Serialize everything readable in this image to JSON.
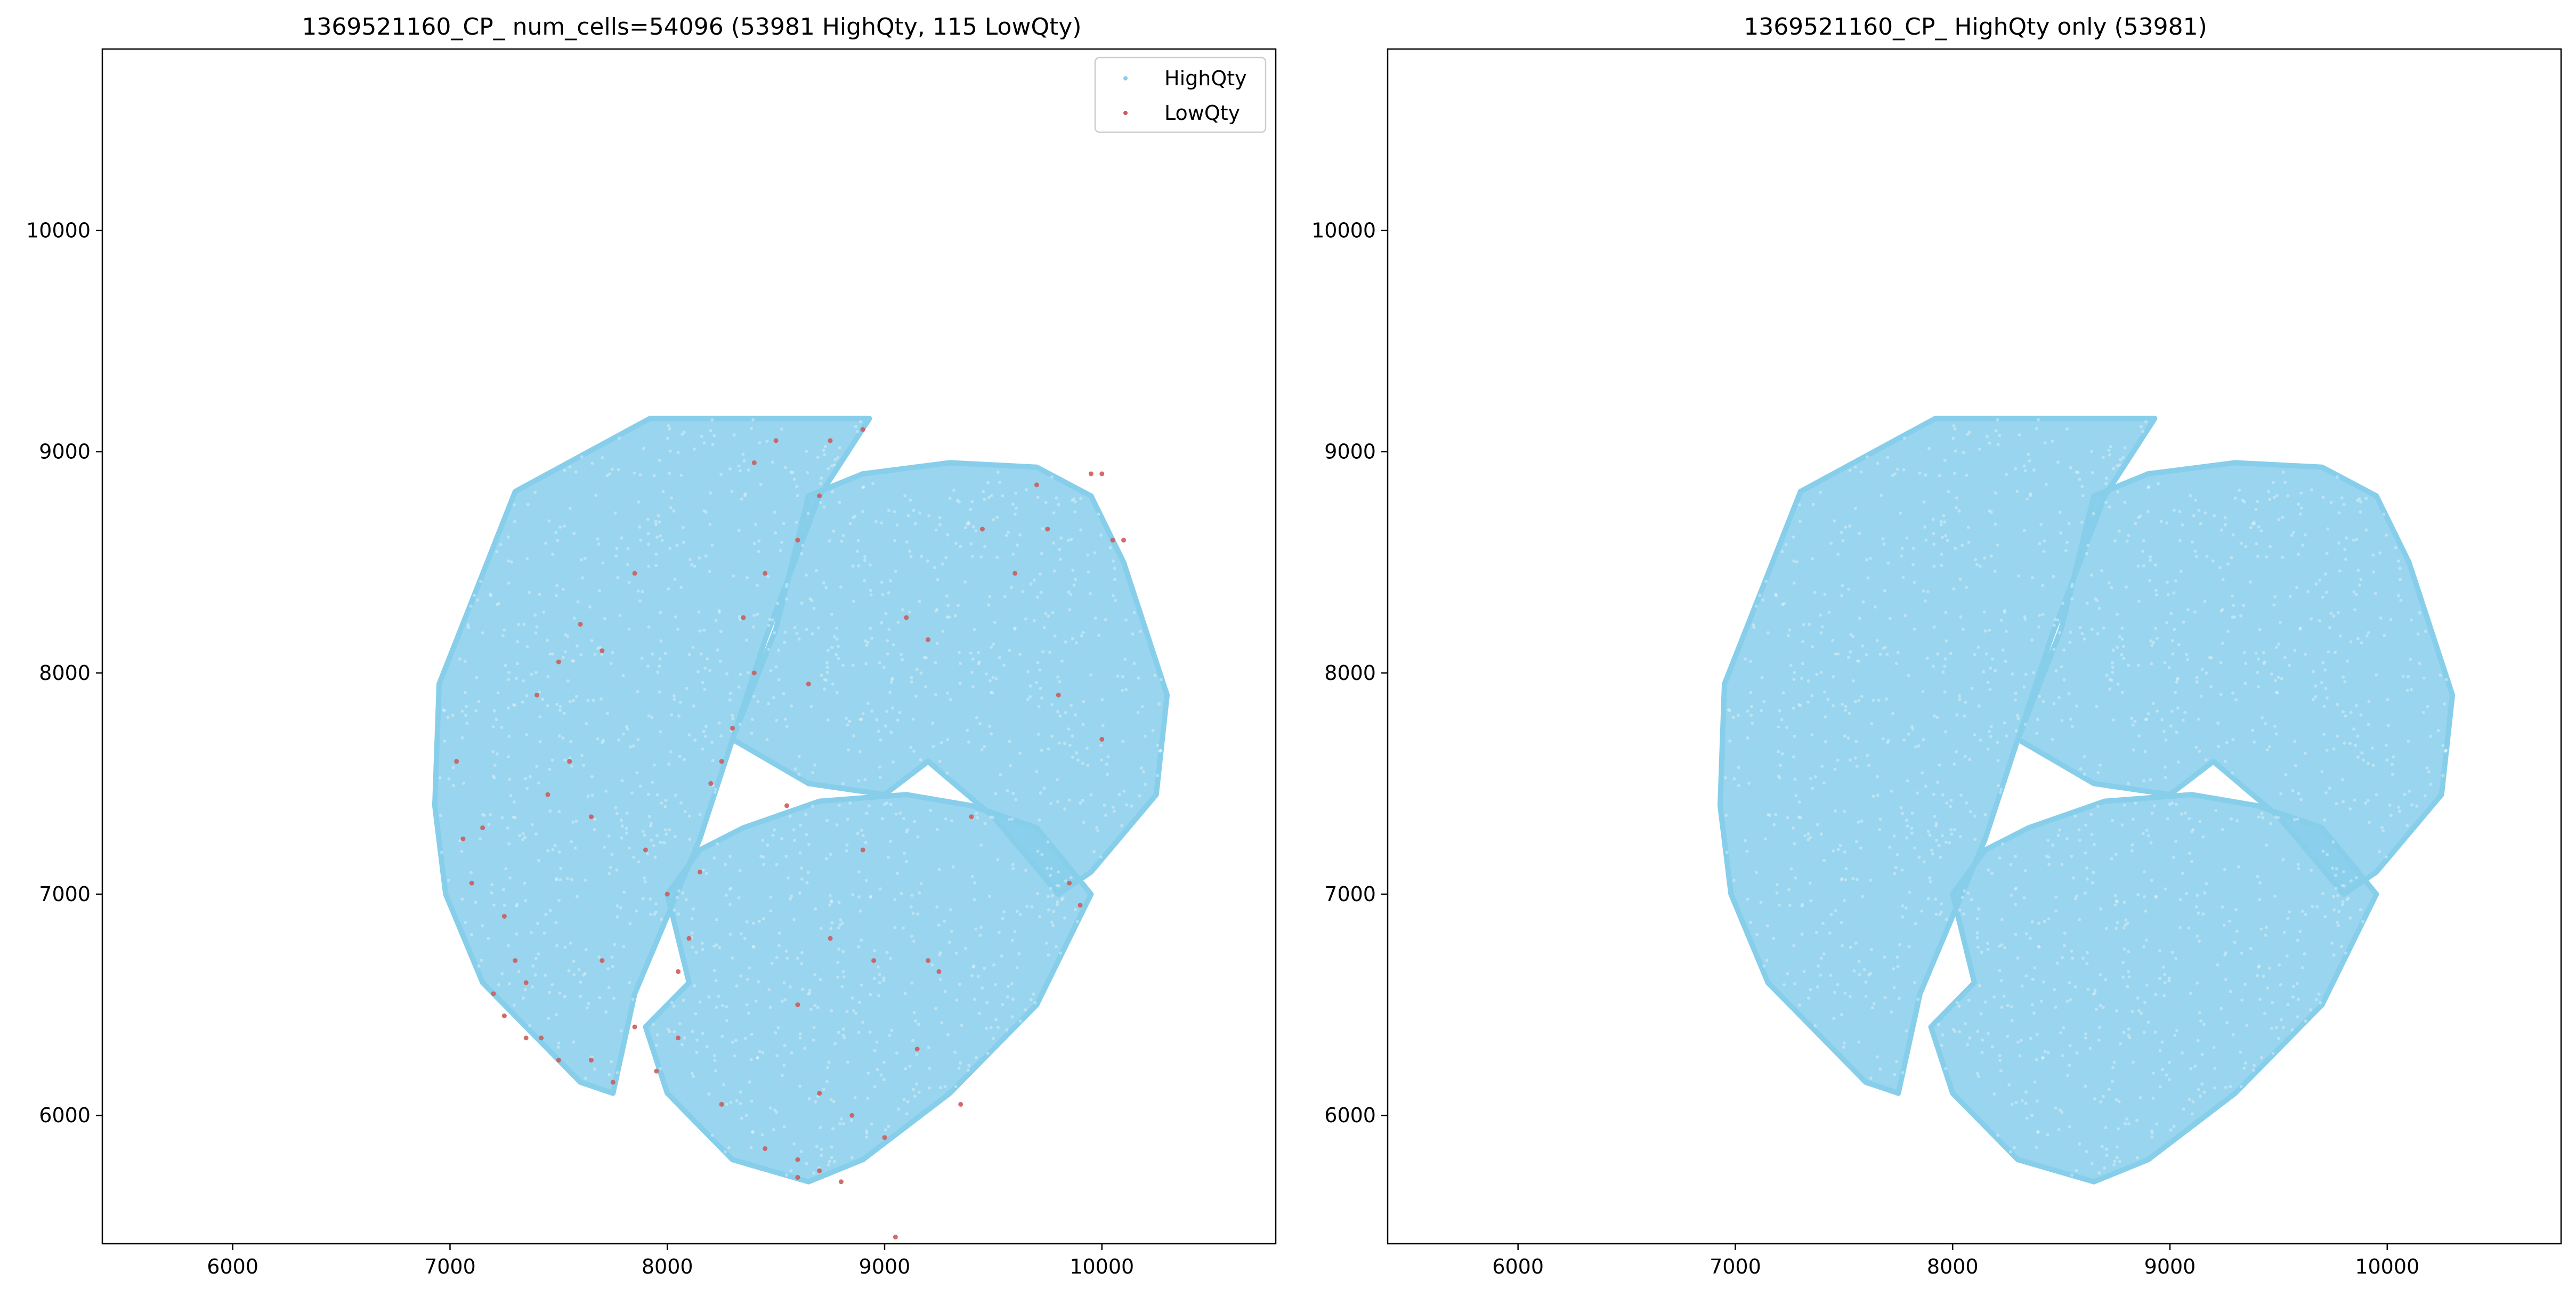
{
  "chart_data": [
    {
      "type": "scatter",
      "title": "1369521160_CP_ num_cells=54096 (53981 HighQty, 115 LowQty)",
      "xlim": [
        5400,
        10800
      ],
      "ylim": [
        5420,
        10820
      ],
      "x_ticks": [
        6000,
        7000,
        8000,
        9000,
        10000
      ],
      "y_ticks": [
        6000,
        7000,
        8000,
        9000,
        10000
      ],
      "grid": false,
      "legend": {
        "placement": "top-right",
        "entries": [
          {
            "label": "HighQty",
            "color": "#87CEEB"
          },
          {
            "label": "LowQty",
            "color": "#CD5C5C"
          }
        ]
      },
      "series": [
        {
          "name": "HighQty",
          "color": "#87CEEB",
          "count": 53981,
          "regions": [
            {
              "polygon": [
                [
                  7920,
                  9150
                ],
                [
                  7300,
                  8820
                ],
                [
                  6950,
                  7950
                ],
                [
                  6930,
                  7400
                ],
                [
                  6980,
                  7000
                ],
                [
                  7150,
                  6600
                ],
                [
                  7350,
                  6400
                ],
                [
                  7600,
                  6150
                ],
                [
                  7750,
                  6100
                ],
                [
                  7850,
                  6550
                ],
                [
                  8000,
                  6900
                ],
                [
                  8150,
                  7250
                ],
                [
                  8300,
                  7700
                ],
                [
                  8450,
                  8150
                ],
                [
                  8700,
                  8800
                ],
                [
                  8930,
                  9150
                ]
              ]
            },
            {
              "polygon": [
                [
                  8650,
                  8800
                ],
                [
                  8500,
                  8200
                ],
                [
                  8300,
                  7700
                ],
                [
                  8650,
                  7500
                ],
                [
                  9000,
                  7450
                ],
                [
                  9200,
                  7600
                ],
                [
                  9500,
                  7350
                ],
                [
                  9800,
                  7000
                ],
                [
                  9950,
                  7100
                ],
                [
                  10250,
                  7450
                ],
                [
                  10300,
                  7900
                ],
                [
                  10100,
                  8500
                ],
                [
                  9950,
                  8800
                ],
                [
                  9700,
                  8930
                ],
                [
                  9300,
                  8950
                ],
                [
                  8900,
                  8900
                ]
              ]
            },
            {
              "polygon": [
                [
                  8000,
                  7000
                ],
                [
                  8100,
                  6600
                ],
                [
                  7900,
                  6400
                ],
                [
                  8000,
                  6100
                ],
                [
                  8300,
                  5800
                ],
                [
                  8650,
                  5700
                ],
                [
                  8900,
                  5800
                ],
                [
                  9300,
                  6100
                ],
                [
                  9700,
                  6500
                ],
                [
                  9950,
                  7000
                ],
                [
                  9700,
                  7300
                ],
                [
                  9400,
                  7400
                ],
                [
                  9100,
                  7450
                ],
                [
                  8700,
                  7420
                ],
                [
                  8350,
                  7300
                ],
                [
                  8150,
                  7200
                ]
              ]
            }
          ]
        },
        {
          "name": "LowQty",
          "color": "#CD5C5C",
          "count": 115,
          "points": [
            [
              7030,
              7600
            ],
            [
              7060,
              7250
            ],
            [
              7150,
              7300
            ],
            [
              7200,
              6550
            ],
            [
              7250,
              6450
            ],
            [
              7350,
              6350
            ],
            [
              7420,
              6350
            ],
            [
              7300,
              6700
            ],
            [
              7450,
              7450
            ],
            [
              7550,
              7600
            ],
            [
              7600,
              8220
            ],
            [
              7700,
              8100
            ],
            [
              7700,
              6700
            ],
            [
              7750,
              6150
            ],
            [
              7850,
              8450
            ],
            [
              7900,
              7200
            ],
            [
              8000,
              7000
            ],
            [
              8050,
              6650
            ],
            [
              8100,
              6800
            ],
            [
              8200,
              7500
            ],
            [
              8300,
              7750
            ],
            [
              8350,
              8250
            ],
            [
              8400,
              8000
            ],
            [
              8450,
              8450
            ],
            [
              8600,
              8600
            ],
            [
              8650,
              7950
            ],
            [
              8700,
              8800
            ],
            [
              8750,
              9050
            ],
            [
              8900,
              9100
            ],
            [
              8400,
              8950
            ],
            [
              8500,
              9050
            ],
            [
              8600,
              6500
            ],
            [
              8700,
              6100
            ],
            [
              8600,
              5720
            ],
            [
              8700,
              5750
            ],
            [
              8850,
              6000
            ],
            [
              9050,
              5450
            ],
            [
              9250,
              6650
            ],
            [
              9200,
              6700
            ],
            [
              9200,
              8150
            ],
            [
              9700,
              8850
            ],
            [
              9850,
              7050
            ],
            [
              9900,
              6950
            ],
            [
              10000,
              7700
            ],
            [
              10100,
              8600
            ],
            [
              10000,
              8900
            ],
            [
              9450,
              8650
            ],
            [
              9100,
              8250
            ],
            [
              9950,
              8900
            ],
            [
              7400,
              7900
            ],
            [
              7500,
              8050
            ],
            [
              7650,
              7350
            ],
            [
              7850,
              6400
            ],
            [
              8150,
              7100
            ],
            [
              8250,
              7600
            ],
            [
              8550,
              7400
            ],
            [
              8750,
              6800
            ],
            [
              8900,
              7200
            ],
            [
              8950,
              6700
            ],
            [
              9150,
              6300
            ],
            [
              9400,
              7350
            ],
            [
              9600,
              8450
            ],
            [
              9750,
              8650
            ],
            [
              9800,
              7900
            ],
            [
              10050,
              8600
            ],
            [
              7100,
              7050
            ],
            [
              7250,
              6900
            ],
            [
              7350,
              6600
            ],
            [
              7500,
              6250
            ],
            [
              7650,
              6250
            ],
            [
              7950,
              6200
            ],
            [
              8050,
              6350
            ],
            [
              8250,
              6050
            ],
            [
              8450,
              5850
            ],
            [
              8600,
              5800
            ],
            [
              8800,
              5700
            ],
            [
              9000,
              5900
            ],
            [
              9350,
              6050
            ]
          ]
        }
      ]
    },
    {
      "type": "scatter",
      "title": "1369521160_CP_ HighQty only (53981)",
      "xlim": [
        5400,
        10800
      ],
      "ylim": [
        5420,
        10820
      ],
      "x_ticks": [
        6000,
        7000,
        8000,
        9000,
        10000
      ],
      "y_ticks": [
        6000,
        7000,
        8000,
        9000,
        10000
      ],
      "grid": false,
      "series": [
        {
          "name": "HighQty",
          "color": "#87CEEB",
          "count": 53981,
          "regions": [
            {
              "polygon": [
                [
                  7920,
                  9150
                ],
                [
                  7300,
                  8820
                ],
                [
                  6950,
                  7950
                ],
                [
                  6930,
                  7400
                ],
                [
                  6980,
                  7000
                ],
                [
                  7150,
                  6600
                ],
                [
                  7350,
                  6400
                ],
                [
                  7600,
                  6150
                ],
                [
                  7750,
                  6100
                ],
                [
                  7850,
                  6550
                ],
                [
                  8000,
                  6900
                ],
                [
                  8150,
                  7250
                ],
                [
                  8300,
                  7700
                ],
                [
                  8450,
                  8150
                ],
                [
                  8700,
                  8800
                ],
                [
                  8930,
                  9150
                ]
              ]
            },
            {
              "polygon": [
                [
                  8650,
                  8800
                ],
                [
                  8500,
                  8200
                ],
                [
                  8300,
                  7700
                ],
                [
                  8650,
                  7500
                ],
                [
                  9000,
                  7450
                ],
                [
                  9200,
                  7600
                ],
                [
                  9500,
                  7350
                ],
                [
                  9800,
                  7000
                ],
                [
                  9950,
                  7100
                ],
                [
                  10250,
                  7450
                ],
                [
                  10300,
                  7900
                ],
                [
                  10100,
                  8500
                ],
                [
                  9950,
                  8800
                ],
                [
                  9700,
                  8930
                ],
                [
                  9300,
                  8950
                ],
                [
                  8900,
                  8900
                ]
              ]
            },
            {
              "polygon": [
                [
                  8000,
                  7000
                ],
                [
                  8100,
                  6600
                ],
                [
                  7900,
                  6400
                ],
                [
                  8000,
                  6100
                ],
                [
                  8300,
                  5800
                ],
                [
                  8650,
                  5700
                ],
                [
                  8900,
                  5800
                ],
                [
                  9300,
                  6100
                ],
                [
                  9700,
                  6500
                ],
                [
                  9950,
                  7000
                ],
                [
                  9700,
                  7300
                ],
                [
                  9400,
                  7400
                ],
                [
                  9100,
                  7450
                ],
                [
                  8700,
                  7420
                ],
                [
                  8350,
                  7300
                ],
                [
                  8150,
                  7200
                ]
              ]
            }
          ]
        }
      ]
    }
  ]
}
